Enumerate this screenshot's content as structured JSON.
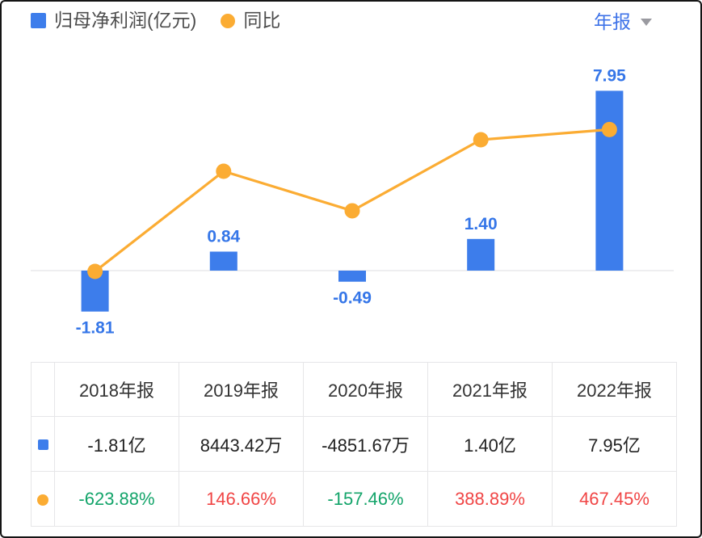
{
  "legend": {
    "items": [
      {
        "label": "归母净利润(亿元)",
        "marker": "square",
        "color": "#3D7DEB"
      },
      {
        "label": "同比",
        "marker": "dot",
        "color": "#FBAC33"
      }
    ]
  },
  "period_selector": {
    "label": "年报",
    "icon": "caret-down-icon"
  },
  "colors": {
    "bar_blue": "#3D7DEB",
    "line_orange": "#FBAC33",
    "label_blue": "#3576E8",
    "value_green": "#13A46A",
    "value_red": "#F04545",
    "baseline_gray": "#e9e9ec",
    "header_text": "#333333",
    "cell_text": "#222222"
  },
  "chart_data": {
    "type": "bar",
    "categories": [
      "2018年报",
      "2019年报",
      "2020年报",
      "2021年报",
      "2022年报"
    ],
    "series": [
      {
        "name": "归母净利润(亿元)",
        "type": "bar",
        "values": [
          -1.81,
          0.84,
          -0.49,
          1.4,
          7.95
        ],
        "labels": [
          "-1.81",
          "0.84",
          "-0.49",
          "1.40",
          "7.95"
        ],
        "color": "#3D7DEB"
      },
      {
        "name": "同比",
        "type": "line",
        "values": [
          -623.88,
          146.66,
          -157.46,
          388.89,
          467.45
        ],
        "unit": "%",
        "color": "#FBAC33"
      }
    ],
    "title": "",
    "xlabel": "",
    "ylabel": "",
    "grid": false,
    "legend_position": "top-left",
    "baseline": 0,
    "bar_axis_range_hint": [
      -2,
      8.5
    ],
    "line_axis_range_hint_pct": [
      -700,
      500
    ]
  },
  "table": {
    "headers": [
      "",
      "2018年报",
      "2019年报",
      "2020年报",
      "2021年报",
      "2022年报"
    ],
    "rows": [
      {
        "marker": "square",
        "cells": [
          "-1.81亿",
          "8443.42万",
          "-4851.67万",
          "1.40亿",
          "7.95亿"
        ],
        "cell_colors": [
          "default",
          "default",
          "default",
          "default",
          "default"
        ]
      },
      {
        "marker": "dot",
        "cells": [
          "-623.88%",
          "146.66%",
          "-157.46%",
          "388.89%",
          "467.45%"
        ],
        "cell_colors": [
          "green",
          "red",
          "green",
          "red",
          "red"
        ]
      }
    ]
  }
}
